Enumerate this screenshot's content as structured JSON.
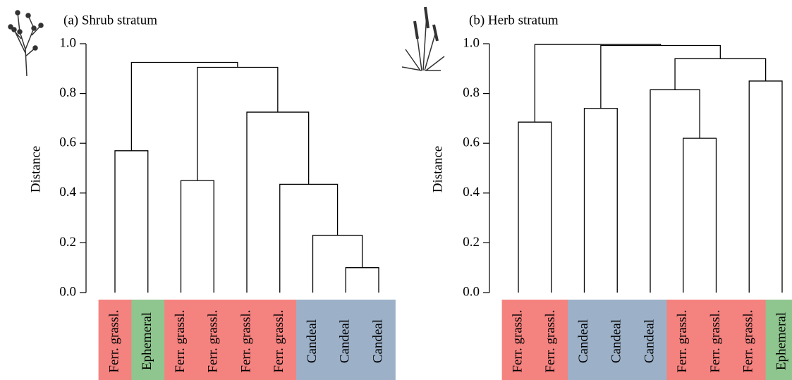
{
  "chart_data": [
    {
      "type": "dendrogram",
      "title": "(a) Shrub stratum",
      "y_label": "Distance",
      "ylim": [
        0,
        1
      ],
      "yticks": [
        {
          "value": 0,
          "label": "0.0"
        },
        {
          "value": 0.2,
          "label": "0.2"
        },
        {
          "value": 0.4,
          "label": "0.4"
        },
        {
          "value": 0.6,
          "label": "0.6"
        },
        {
          "value": 0.8,
          "label": "0.8"
        },
        {
          "value": 1,
          "label": "1.0"
        }
      ],
      "leaves": [
        {
          "label": "Ferr. grassl.",
          "color": "#f4827f"
        },
        {
          "label": "Ephemeral",
          "color": "#8fc58e"
        },
        {
          "label": "Ferr. grassl.",
          "color": "#f4827f"
        },
        {
          "label": "Ferr. grassl.",
          "color": "#f4827f"
        },
        {
          "label": "Ferr. grassl.",
          "color": "#f4827f"
        },
        {
          "label": "Ferr. grassl.",
          "color": "#f4827f"
        },
        {
          "label": "Candeal",
          "color": "#9cb1c8"
        },
        {
          "label": "Candeal",
          "color": "#9cb1c8"
        },
        {
          "label": "Candeal",
          "color": "#9cb1c8"
        }
      ],
      "merges": [
        {
          "children": [
            0,
            1
          ],
          "height": 0.57
        },
        {
          "children": [
            2,
            3
          ],
          "height": 0.45
        },
        {
          "children": [
            7,
            8
          ],
          "height": 0.1
        },
        {
          "children": [
            6,
            11
          ],
          "height": 0.23
        },
        {
          "children": [
            5,
            12
          ],
          "height": 0.435
        },
        {
          "children": [
            4,
            13
          ],
          "height": 0.725
        },
        {
          "children": [
            10,
            14
          ],
          "height": 0.905
        },
        {
          "children": [
            9,
            15
          ],
          "height": 0.925
        }
      ]
    },
    {
      "type": "dendrogram",
      "title": "(b) Herb stratum",
      "y_label": "Distance",
      "ylim": [
        0,
        1
      ],
      "yticks": [
        {
          "value": 0,
          "label": "0.0"
        },
        {
          "value": 0.2,
          "label": "0.2"
        },
        {
          "value": 0.4,
          "label": "0.4"
        },
        {
          "value": 0.6,
          "label": "0.6"
        },
        {
          "value": 0.8,
          "label": "0.8"
        },
        {
          "value": 1,
          "label": "1.0"
        }
      ],
      "leaves": [
        {
          "label": "Ferr. grassl.",
          "color": "#f4827f"
        },
        {
          "label": "Ferr. grassl.",
          "color": "#f4827f"
        },
        {
          "label": "Candeal",
          "color": "#9cb1c8"
        },
        {
          "label": "Candeal",
          "color": "#9cb1c8"
        },
        {
          "label": "Candeal",
          "color": "#9cb1c8"
        },
        {
          "label": "Ferr. grassl.",
          "color": "#f4827f"
        },
        {
          "label": "Ferr. grassl.",
          "color": "#f4827f"
        },
        {
          "label": "Ferr. grassl.",
          "color": "#f4827f"
        },
        {
          "label": "Ephemeral",
          "color": "#8fc58e"
        }
      ],
      "merges": [
        {
          "children": [
            0,
            1
          ],
          "height": 0.685
        },
        {
          "children": [
            2,
            3
          ],
          "height": 0.74
        },
        {
          "children": [
            5,
            6
          ],
          "height": 0.62
        },
        {
          "children": [
            4,
            11
          ],
          "height": 0.815
        },
        {
          "children": [
            7,
            8
          ],
          "height": 0.85
        },
        {
          "children": [
            12,
            13
          ],
          "height": 0.94
        },
        {
          "children": [
            10,
            14
          ],
          "height": 0.993
        },
        {
          "children": [
            9,
            15
          ],
          "height": 0.997
        }
      ]
    }
  ]
}
